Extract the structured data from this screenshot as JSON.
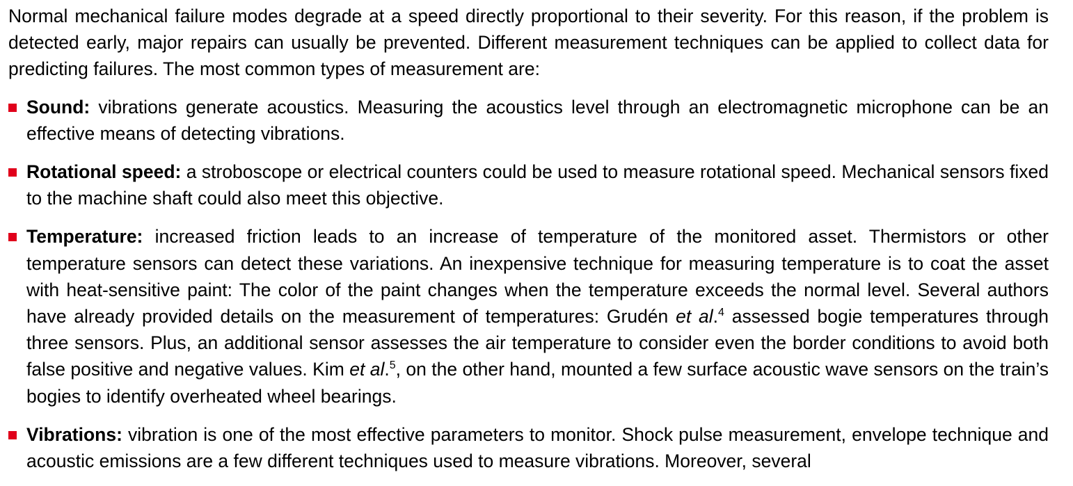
{
  "intro": "Normal mechanical failure modes degrade at a speed directly proportional to their severity. For this reason, if the problem is detected early, major repairs can usually be prevented. Different measurement techniques can be applied to collect data for predicting failures. The most common types of measurement are:",
  "accent_color": "#e0001b",
  "bullets": [
    {
      "term": "Sound:",
      "text": " vibrations generate acoustics. Measuring the acoustics level through an electromagnetic microphone can be an effective means of detecting vibrations."
    },
    {
      "term": "Rotational speed:",
      "text": " a stroboscope or electrical counters could be used to measure rotational speed. Mechanical sensors fixed to the machine shaft could also meet this objective."
    },
    {
      "term": "Temperature:",
      "text_a": " increased friction leads to an increase of temperature of the monitored asset. Thermistors or other temperature sensors can detect these variations. An inexpensive technique for measuring temperature is to coat the asset with heat-sensitive paint: The color of the paint changes when the temperature exceeds the normal level. Several authors have already provided details on the measurement of temperatures: Grudén ",
      "etal_1": "et al",
      "text_b": ".",
      "ref_1": "4",
      "text_c": " assessed bogie temperatures through three sensors. Plus, an additional sensor assesses the air temperature to consider even the border conditions to avoid both false positive and negative values. Kim ",
      "etal_2": "et al",
      "text_d": ".",
      "ref_2": "5",
      "text_e": ", on the other hand, mounted a few surface acoustic wave sensors on the train’s bogies to identify overheated wheel bearings."
    },
    {
      "term": "Vibrations:",
      "text": " vibration is one of the most effective parameters to monitor. Shock pulse measurement, envelope technique and acoustic emissions are a few different techniques used to measure vibrations. Moreover, several"
    }
  ]
}
